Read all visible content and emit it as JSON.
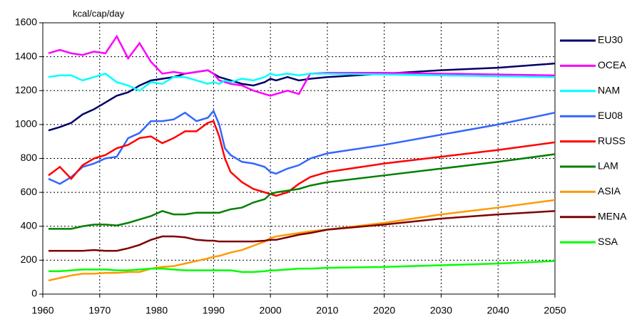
{
  "chart_data": {
    "type": "line",
    "annotation": "kcal/cap/day",
    "x": [
      1961,
      1963,
      1965,
      1967,
      1969,
      1971,
      1973,
      1975,
      1977,
      1979,
      1981,
      1983,
      1985,
      1987,
      1989,
      1990,
      1991,
      1992,
      1993,
      1995,
      1997,
      1999,
      2000,
      2001,
      2003,
      2005,
      2007,
      2010,
      2020,
      2030,
      2040,
      2050
    ],
    "series": [
      {
        "name": "EU30",
        "color": "#000066",
        "values": [
          965,
          985,
          1010,
          1060,
          1090,
          1130,
          1170,
          1190,
          1230,
          1260,
          1270,
          1280,
          1300,
          1310,
          1320,
          1300,
          1280,
          1270,
          1260,
          1240,
          1230,
          1250,
          1270,
          1260,
          1280,
          1260,
          1270,
          1280,
          1300,
          1320,
          1335,
          1360
        ]
      },
      {
        "name": "OCEA",
        "color": "#ff00ff",
        "values": [
          1420,
          1440,
          1420,
          1410,
          1430,
          1420,
          1520,
          1390,
          1480,
          1370,
          1300,
          1310,
          1300,
          1310,
          1320,
          1300,
          1260,
          1250,
          1240,
          1230,
          1200,
          1180,
          1170,
          1180,
          1200,
          1180,
          1300,
          1305,
          1305,
          1300,
          1295,
          1290
        ]
      },
      {
        "name": "NAM",
        "color": "#00ffff",
        "values": [
          1280,
          1290,
          1290,
          1260,
          1280,
          1300,
          1250,
          1230,
          1200,
          1250,
          1240,
          1280,
          1280,
          1260,
          1240,
          1250,
          1240,
          1260,
          1250,
          1270,
          1260,
          1280,
          1300,
          1290,
          1300,
          1290,
          1300,
          1300,
          1295,
          1290,
          1285,
          1280
        ]
      },
      {
        "name": "EU08",
        "color": "#3366ff",
        "values": [
          680,
          650,
          690,
          750,
          770,
          800,
          810,
          920,
          950,
          1020,
          1020,
          1030,
          1070,
          1020,
          1040,
          1080,
          1000,
          860,
          820,
          780,
          770,
          750,
          720,
          710,
          740,
          760,
          800,
          830,
          880,
          940,
          1000,
          1070
        ]
      },
      {
        "name": "RUSS",
        "color": "#ff0000",
        "values": [
          700,
          750,
          680,
          760,
          800,
          820,
          860,
          880,
          920,
          930,
          890,
          920,
          960,
          960,
          1010,
          1020,
          930,
          800,
          720,
          660,
          620,
          600,
          590,
          580,
          600,
          650,
          690,
          720,
          770,
          810,
          850,
          895
        ]
      },
      {
        "name": "LAM",
        "color": "#008000",
        "values": [
          385,
          385,
          385,
          400,
          410,
          410,
          405,
          420,
          440,
          460,
          490,
          470,
          470,
          480,
          480,
          480,
          480,
          490,
          500,
          510,
          540,
          560,
          590,
          600,
          610,
          620,
          640,
          660,
          700,
          740,
          780,
          825
        ]
      },
      {
        "name": "ASIA",
        "color": "#ff9900",
        "values": [
          80,
          95,
          110,
          120,
          120,
          125,
          125,
          130,
          130,
          150,
          160,
          165,
          180,
          195,
          210,
          220,
          225,
          235,
          245,
          260,
          285,
          310,
          330,
          340,
          350,
          360,
          370,
          380,
          420,
          470,
          510,
          555
        ]
      },
      {
        "name": "MENA",
        "color": "#800000",
        "values": [
          255,
          255,
          255,
          255,
          260,
          255,
          255,
          270,
          290,
          320,
          340,
          340,
          335,
          320,
          315,
          315,
          310,
          310,
          310,
          310,
          310,
          315,
          320,
          320,
          335,
          350,
          360,
          380,
          410,
          445,
          470,
          490
        ]
      },
      {
        "name": "SSA",
        "color": "#00ff00",
        "values": [
          135,
          135,
          140,
          145,
          145,
          145,
          140,
          140,
          145,
          150,
          150,
          145,
          140,
          140,
          140,
          140,
          140,
          140,
          140,
          130,
          130,
          135,
          140,
          140,
          145,
          150,
          150,
          155,
          160,
          170,
          180,
          195
        ]
      }
    ],
    "xlim": [
      1960,
      2050
    ],
    "xticks": [
      1960,
      1970,
      1980,
      1990,
      2000,
      2010,
      2020,
      2030,
      2040,
      2050
    ],
    "ylim": [
      0,
      1600
    ],
    "yticks": [
      0,
      200,
      400,
      600,
      800,
      1000,
      1200,
      1400,
      1600
    ],
    "grid": true,
    "legend": "right"
  }
}
